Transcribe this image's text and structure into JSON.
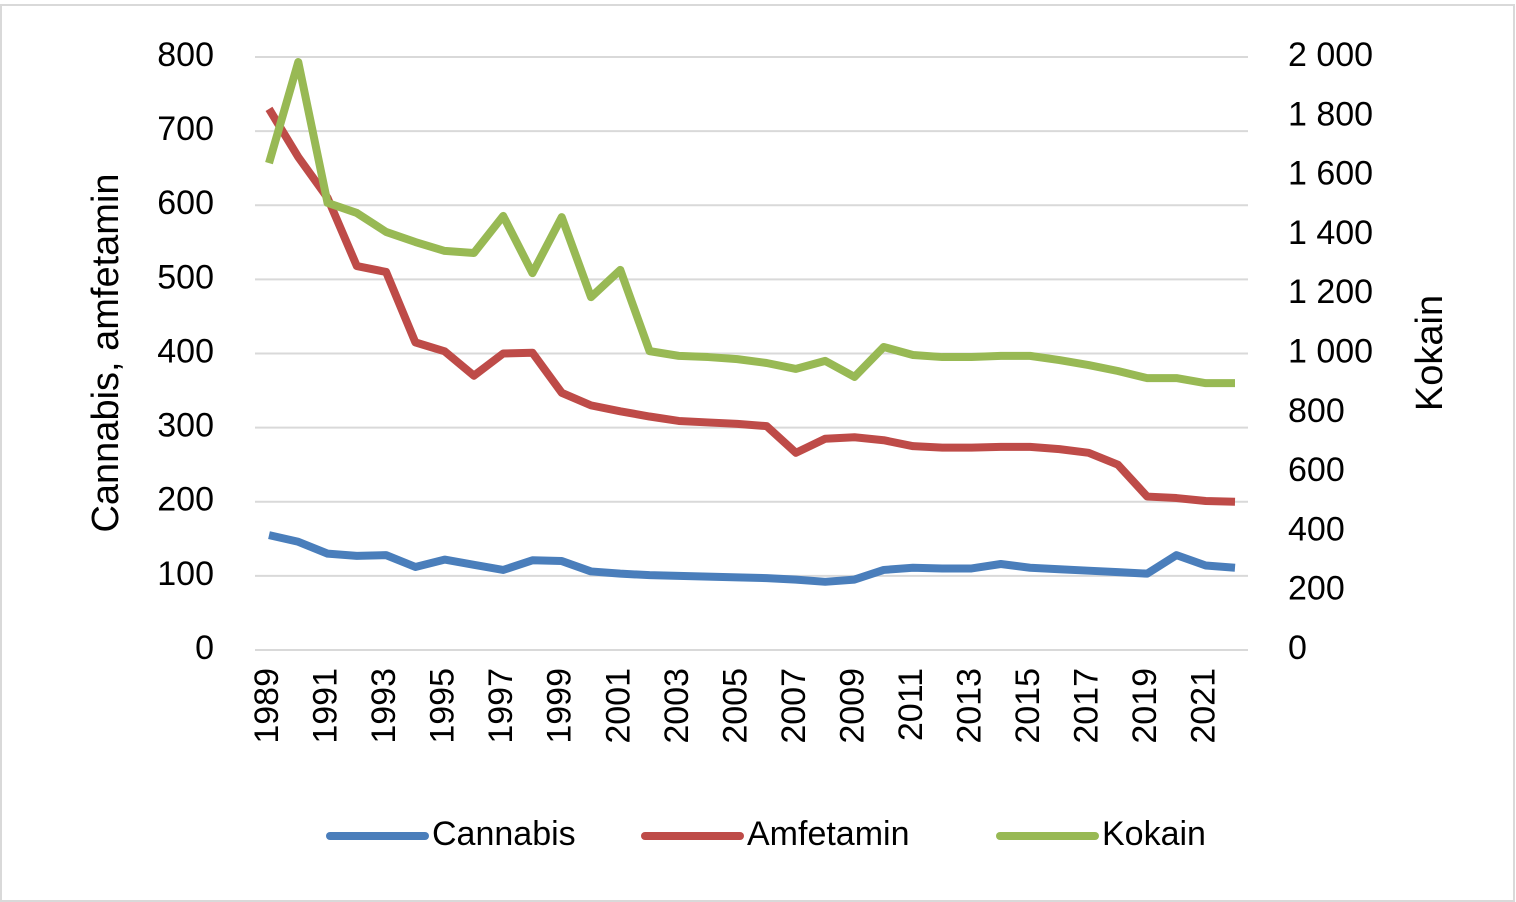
{
  "chart_data": {
    "type": "line",
    "categories": [
      "1989",
      null,
      "1991",
      null,
      "1993",
      null,
      "1995",
      null,
      "1997",
      null,
      "1999",
      null,
      "2001",
      null,
      "2003",
      null,
      "2005",
      null,
      "2007",
      null,
      "2009",
      null,
      "2011",
      null,
      "2013",
      null,
      "2015",
      null,
      "2017",
      null,
      "2019",
      null,
      "2021",
      null
    ],
    "series": [
      {
        "name": "Cannabis",
        "color": "#4a7ebb",
        "values": [
          155,
          146,
          130,
          127,
          128,
          112,
          122,
          115,
          108,
          121,
          120,
          106,
          103,
          101,
          100,
          99,
          98,
          97,
          95,
          92,
          95,
          108,
          111,
          110,
          110,
          116,
          111,
          109,
          107,
          105,
          103,
          128,
          114,
          111
        ]
      },
      {
        "name": "Amfetamin",
        "color": "#be4b48",
        "values": [
          730,
          665,
          610,
          518,
          510,
          415,
          403,
          370,
          400,
          401,
          347,
          330,
          322,
          315,
          309,
          307,
          305,
          302,
          266,
          285,
          287,
          283,
          275,
          273,
          273,
          274,
          274,
          271,
          266,
          250,
          207,
          205,
          201,
          200
        ]
      },
      {
        "name": "Kokain",
        "color": "#98b954",
        "axis": "y2",
        "values": [
          1642,
          1983,
          1508,
          1474,
          1410,
          1376,
          1346,
          1339,
          1464,
          1271,
          1460,
          1190,
          1282,
          1008,
          992,
          988,
          981,
          968,
          948,
          975,
          921,
          1022,
          995,
          988,
          988,
          992,
          992,
          978,
          961,
          941,
          917,
          917,
          900,
          900
        ]
      }
    ],
    "y_label": "Cannabis, amfetamin",
    "y2_label": "Kokain",
    "ylim": [
      0,
      800
    ],
    "yticks": [
      0,
      100,
      200,
      300,
      400,
      500,
      600,
      700,
      800
    ],
    "y2lim": [
      0,
      2000
    ],
    "y2ticks": [
      0,
      200,
      400,
      600,
      800,
      {
        "value": 1000,
        "label": "1 000"
      },
      {
        "value": 1200,
        "label": "1 200"
      },
      {
        "value": 1400,
        "label": "1 400"
      },
      {
        "value": 1600,
        "label": "1 600"
      },
      {
        "value": 1800,
        "label": "1 800"
      },
      {
        "value": 2000,
        "label": "2 000"
      }
    ],
    "grid": true,
    "legend": "bottom"
  }
}
